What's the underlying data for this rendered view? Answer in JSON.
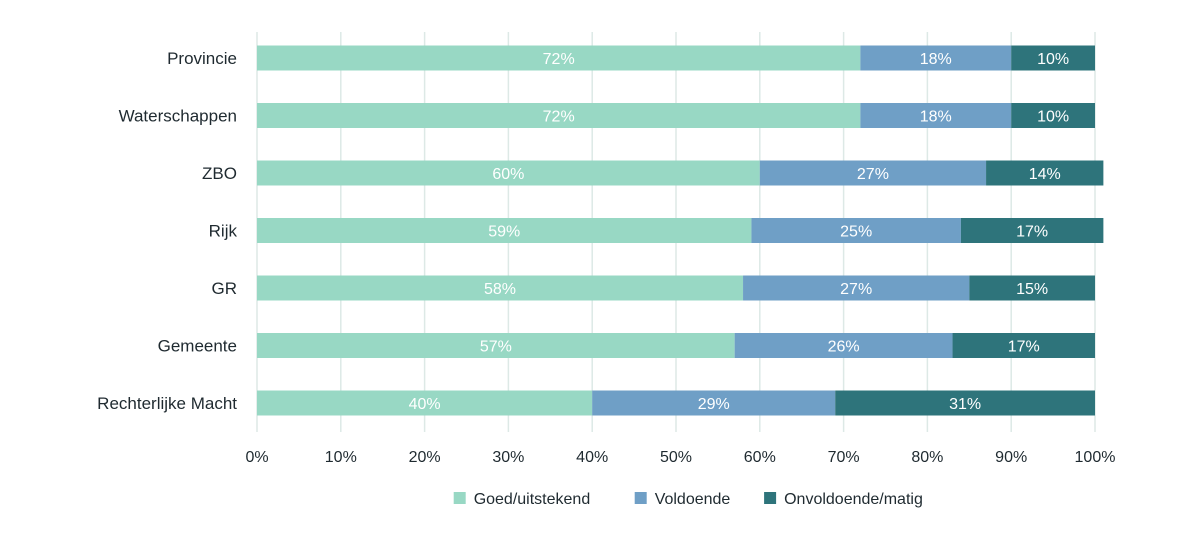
{
  "chart_data": {
    "type": "bar",
    "orientation": "horizontal",
    "stacked": "percent",
    "categories": [
      "Provincie",
      "Waterschappen",
      "ZBO",
      "Rijk",
      "GR",
      "Gemeente",
      "Rechterlijke Macht"
    ],
    "series": [
      {
        "name": "Goed/uitstekend",
        "color": "#98d8c4",
        "label_color": "#ffffff",
        "values": [
          72,
          72,
          60,
          59,
          58,
          57,
          40
        ],
        "labels": [
          "72%",
          "72%",
          "60%",
          "59%",
          "58%",
          "57%",
          "40%"
        ]
      },
      {
        "name": "Voldoende",
        "color": "#6f9fc6",
        "label_color": "#ffffff",
        "values": [
          18,
          18,
          27,
          25,
          27,
          26,
          29
        ],
        "labels": [
          "18%",
          "18%",
          "27%",
          "25%",
          "27%",
          "26%",
          "29%"
        ]
      },
      {
        "name": "Onvoldoende/matig",
        "color": "#2e747b",
        "label_color": "#ffffff",
        "values": [
          10,
          10,
          14,
          17,
          15,
          17,
          31
        ],
        "labels": [
          "10%",
          "10%",
          "14%",
          "17%",
          "15%",
          "17%",
          "31%"
        ]
      }
    ],
    "xlim": [
      0,
      100
    ],
    "xticks": [
      "0%",
      "10%",
      "20%",
      "30%",
      "40%",
      "50%",
      "60%",
      "70%",
      "80%",
      "90%",
      "100%"
    ],
    "grid": "vertical",
    "grid_color": "#dde9e6",
    "legend_position": "bottom"
  }
}
